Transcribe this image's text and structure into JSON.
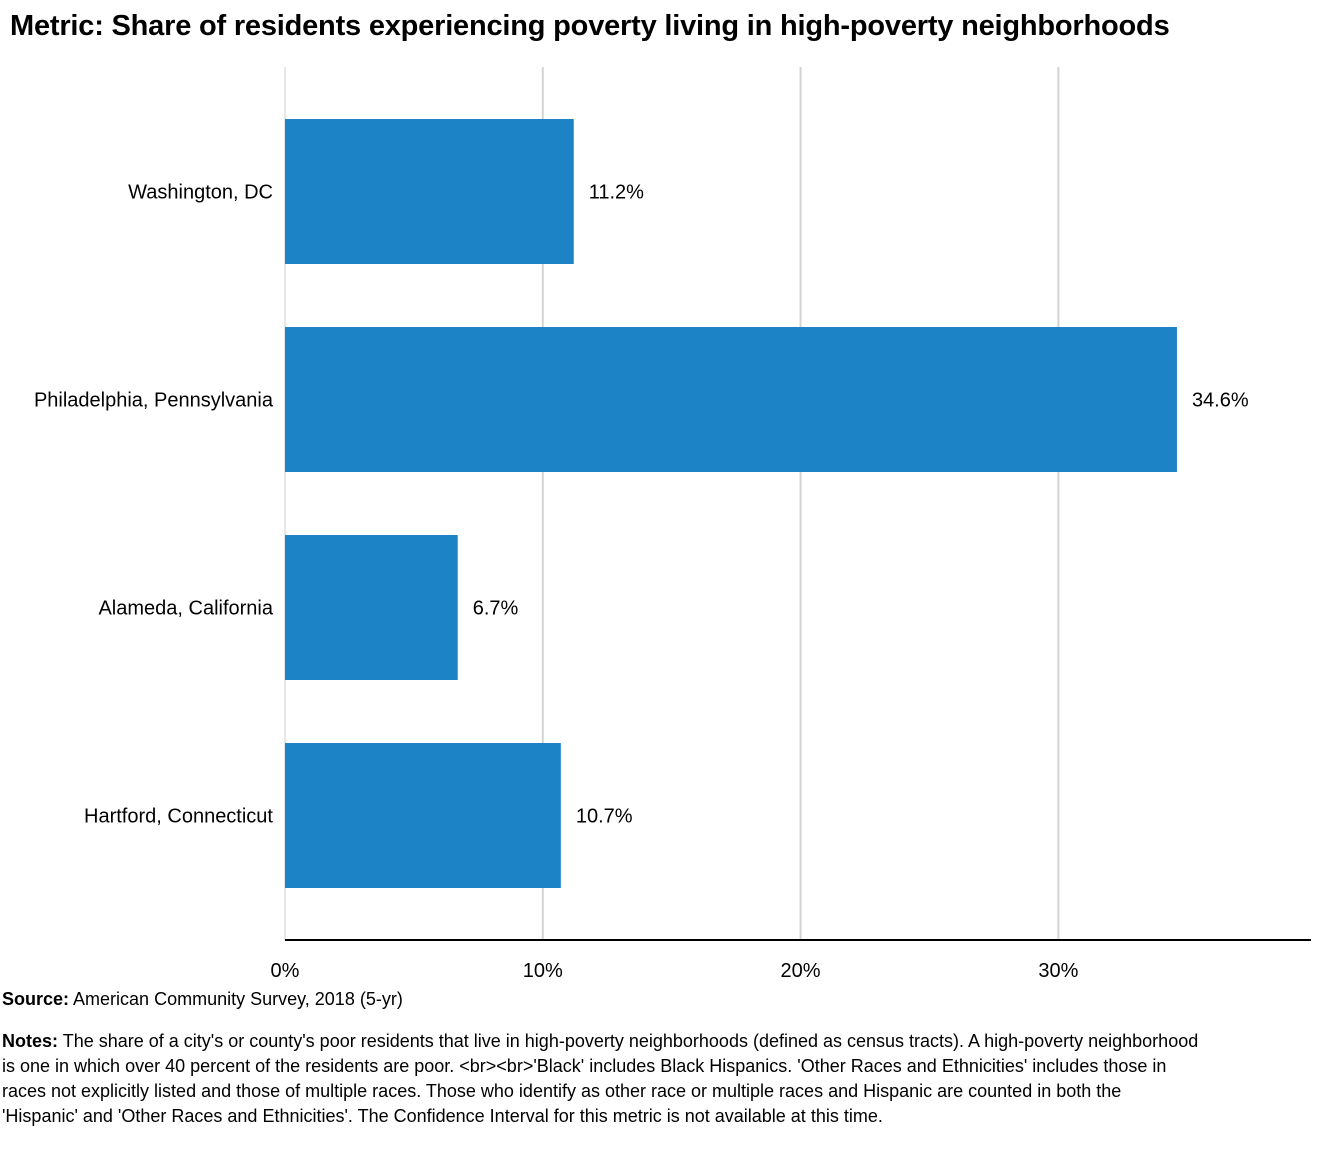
{
  "chart_data": {
    "type": "bar",
    "orientation": "horizontal",
    "title": "Metric: Share of residents experiencing poverty living in high-poverty neighborhoods",
    "categories": [
      "Washington, DC",
      "Philadelphia, Pennsylvania",
      "Alameda, California",
      "Hartford, Connecticut"
    ],
    "values": [
      11.2,
      34.6,
      6.7,
      10.7
    ],
    "value_labels": [
      "11.2%",
      "34.6%",
      "6.7%",
      "10.7%"
    ],
    "x_ticks": [
      0,
      10,
      20,
      30
    ],
    "x_tick_labels": [
      "0%",
      "10%",
      "20%",
      "30%"
    ],
    "xlim": [
      0,
      39.8
    ],
    "grid": "vertical",
    "bar_color": "#1b83c6"
  },
  "footer": {
    "source_label": "Source:",
    "source_text": "American Community Survey, 2018 (5-yr)",
    "notes_label": "Notes:",
    "notes_text": "The share of a city's or county's poor residents that live in high-poverty neighborhoods (defined as census tracts). A high-poverty neighborhood is one in which over 40 percent of the residents are poor. <br><br>'Black' includes Black Hispanics. 'Other Races and Ethnicities' includes those in races not explicitly listed and those of multiple races. Those who identify as other race or multiple races and Hispanic are counted in both the 'Hispanic' and 'Other Races and Ethnicities'. The Confidence Interval for this metric is not available at this time."
  }
}
